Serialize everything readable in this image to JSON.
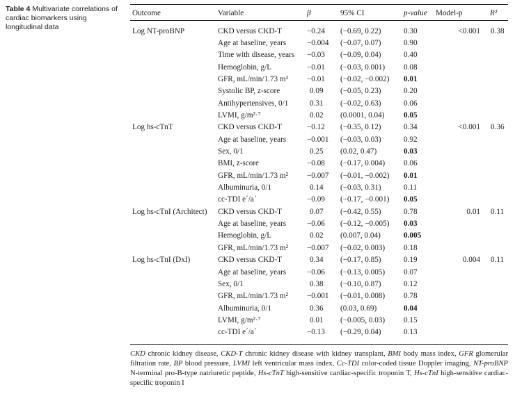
{
  "caption": {
    "label": "Table 4",
    "text": "Multivariate correlations of cardiac biomarkers using longitudinal data"
  },
  "headers": {
    "outcome": "Outcome",
    "variable": "Variable",
    "beta": "β",
    "ci": "95% CI",
    "pvalue": "p-value",
    "modelp": "Model-p",
    "r2": "R²"
  },
  "groups": [
    {
      "outcome": "Log NT-proBNP",
      "modelp": "<0.001",
      "r2": "0.38",
      "rows": [
        {
          "variable": "CKD versus CKD-T",
          "beta": "−0.24",
          "ci": "(−0.69, 0.22)",
          "p": "0.30",
          "bold": false
        },
        {
          "variable": "Age at baseline, years",
          "beta": "−0.004",
          "ci": "(−0.07, 0.07)",
          "p": "0.90",
          "bold": false
        },
        {
          "variable": "Time with disease, years",
          "beta": "−0.03",
          "ci": "(−0.09, 0.04)",
          "p": "0.40",
          "bold": false
        },
        {
          "variable": "Hemoglobin, g/L",
          "beta": "−0.01",
          "ci": "(−0.03, 0.001)",
          "p": "0.08",
          "bold": false
        },
        {
          "variable": "GFR, mL/min/1.73 m²",
          "beta": "−0.01",
          "ci": "(−0.02, −0.002)",
          "p": "0.01",
          "bold": true
        },
        {
          "variable": "Systolic BP, z-score",
          "beta": "0.09",
          "ci": "(−0.05, 0.23)",
          "p": "0.20",
          "bold": false
        },
        {
          "variable": "Antihypertensives, 0/1",
          "beta": "0.31",
          "ci": "(−0.02, 0.63)",
          "p": "0.06",
          "bold": false
        },
        {
          "variable": "LVMI, g/m²·⁷",
          "beta": "0.02",
          "ci": "(0.0001, 0.04)",
          "p": "0.05",
          "bold": true
        }
      ]
    },
    {
      "outcome": "Log hs-cTnT",
      "modelp": "<0.001",
      "r2": "0.36",
      "rows": [
        {
          "variable": "CKD versus CKD-T",
          "beta": "−0.12",
          "ci": "(−0.35, 0.12)",
          "p": "0.34",
          "bold": false
        },
        {
          "variable": "Age at baseline, years",
          "beta": "−0.001",
          "ci": "(−0.03, 0.03)",
          "p": "0.92",
          "bold": false
        },
        {
          "variable": "Sex, 0/1",
          "beta": "0.25",
          "ci": "(0.02, 0.47)",
          "p": "0.03",
          "bold": true
        },
        {
          "variable": "BMI, z-score",
          "beta": "−0.08",
          "ci": "(−0.17, 0.004)",
          "p": "0.06",
          "bold": false
        },
        {
          "variable": "GFR, mL/min/1.73 m²",
          "beta": "−0.007",
          "ci": "(−0.01, −0.002)",
          "p": "0.01",
          "bold": true
        },
        {
          "variable": "Albuminuria, 0/1",
          "beta": "0.14",
          "ci": "(−0.03, 0.31)",
          "p": "0.11",
          "bold": false
        },
        {
          "variable": "cc-TDI e´/a´",
          "beta": "−0.09",
          "ci": "(−0.17, −0.001)",
          "p": "0.05",
          "bold": true
        }
      ]
    },
    {
      "outcome": "Log hs-cTnI (Architect)",
      "modelp": "0.01",
      "r2": "0.11",
      "rows": [
        {
          "variable": "CKD versus CKD-T",
          "beta": "0.07",
          "ci": "(−0.42, 0.55)",
          "p": "0.78",
          "bold": false
        },
        {
          "variable": "Age at baseline, years",
          "beta": "−0.06",
          "ci": "(−0.12, −0.005)",
          "p": "0.03",
          "bold": true
        },
        {
          "variable": "Hemoglobin, g/L",
          "beta": "0.02",
          "ci": "(0.007, 0.04)",
          "p": "0.005",
          "bold": true
        },
        {
          "variable": "GFR, mL/min/1.73 m²",
          "beta": "−0.007",
          "ci": "(−0.02, 0.003)",
          "p": "0.18",
          "bold": false
        }
      ]
    },
    {
      "outcome": "Log hs-cTnI (DxI)",
      "modelp": "0.004",
      "r2": "0.11",
      "rows": [
        {
          "variable": "CKD versus CKD-T",
          "beta": "0.34",
          "ci": "(−0.17, 0.85)",
          "p": "0.19",
          "bold": false
        },
        {
          "variable": "Age at baseline, years",
          "beta": "−0.06",
          "ci": "(−0.13, 0.005)",
          "p": "0.07",
          "bold": false
        },
        {
          "variable": "Sex, 0/1",
          "beta": "0.38",
          "ci": "(−0.10, 0.87)",
          "p": "0.12",
          "bold": false
        },
        {
          "variable": "GFR, mL/min/1.73 m²",
          "beta": "−0.001",
          "ci": "(−0.01, 0.008)",
          "p": "0.78",
          "bold": false
        },
        {
          "variable": "Albuminuria, 0/1",
          "beta": "0.36",
          "ci": "(0.03, 0.69)",
          "p": "0.04",
          "bold": true
        },
        {
          "variable": "LVMI, g/m²·⁷",
          "beta": "0.01",
          "ci": "(−0.005, 0.03)",
          "p": "0.15",
          "bold": false
        },
        {
          "variable": "cc-TDI e´/a´",
          "beta": "−0.13",
          "ci": "(−0.29, 0.04)",
          "p": "0.13",
          "bold": false
        }
      ]
    }
  ],
  "footnote": [
    {
      "abbr": "CKD",
      "def": " chronic kidney disease, "
    },
    {
      "abbr": "CKD-T",
      "def": " chronic kidney disease with kidney transplant, "
    },
    {
      "abbr": "BMI",
      "def": " body mass index, "
    },
    {
      "abbr": "GFR",
      "def": " glomerular filtration rate, "
    },
    {
      "abbr": "BP",
      "def": " blood pressure, "
    },
    {
      "abbr": "LVMI",
      "def": " left ventricular mass index, "
    },
    {
      "abbr": "Cc-TDI",
      "def": " color-coded tissue Doppler imaging, "
    },
    {
      "abbr": "NT-proBNP",
      "def": " N-terminal pro-B-type natriuretic peptide, "
    },
    {
      "abbr": "Hs-cTnT",
      "def": " high-sensitive cardiac-specific troponin T, "
    },
    {
      "abbr": "Hs-cTnI",
      "def": " high-sensitive cardiac-specific troponin I"
    }
  ]
}
